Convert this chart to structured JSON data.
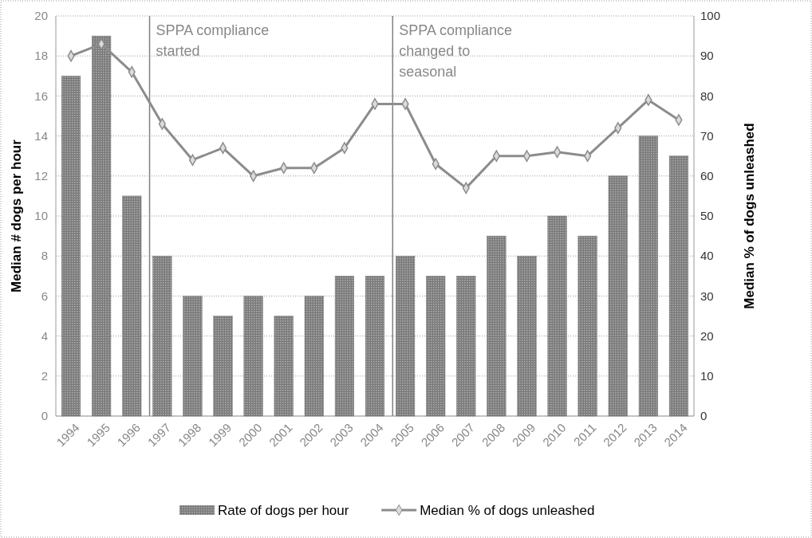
{
  "chart_data": {
    "type": "bar",
    "categories": [
      "1994",
      "1995",
      "1996",
      "1997",
      "1998",
      "1999",
      "2000",
      "2001",
      "2002",
      "2003",
      "2004",
      "2005",
      "2006",
      "2007",
      "2008",
      "2009",
      "2010",
      "2011",
      "2012",
      "2013",
      "2014"
    ],
    "series": [
      {
        "name": "Rate of dogs per hour",
        "color": "#7a7a7a",
        "values": [
          17,
          19,
          11,
          8,
          6,
          5,
          6,
          5,
          6,
          7,
          7,
          8,
          7,
          7,
          9,
          8,
          10,
          9,
          12,
          14,
          13
        ]
      },
      {
        "name": "Median % of dogs unleashed",
        "type": "line",
        "axis": "y2",
        "color": "#8c8c8c",
        "marker": "diamond",
        "values": [
          90,
          93,
          86,
          73,
          64,
          67,
          60,
          62,
          62,
          67,
          78,
          78,
          63,
          57,
          65,
          65,
          66,
          65,
          72,
          79,
          74
        ]
      }
    ],
    "ylabel": "Median # dogs per hour",
    "y2label": "Median % of dogs unleashed",
    "ylim": [
      0,
      20
    ],
    "yticks": [
      0,
      2,
      4,
      6,
      8,
      10,
      12,
      14,
      16,
      18,
      20
    ],
    "y2lim": [
      0,
      100
    ],
    "y2ticks": [
      0,
      10,
      20,
      30,
      40,
      50,
      60,
      70,
      80,
      90,
      100
    ],
    "grid": "y",
    "legend": "bottom",
    "ref_lines": [
      {
        "axis": "x",
        "value": "1997",
        "label": "SPPA compliance started",
        "color": "#808080"
      },
      {
        "axis": "x",
        "value": "2005",
        "label": "SPPA compliance changed to seasonal",
        "color": "#808080"
      }
    ]
  }
}
